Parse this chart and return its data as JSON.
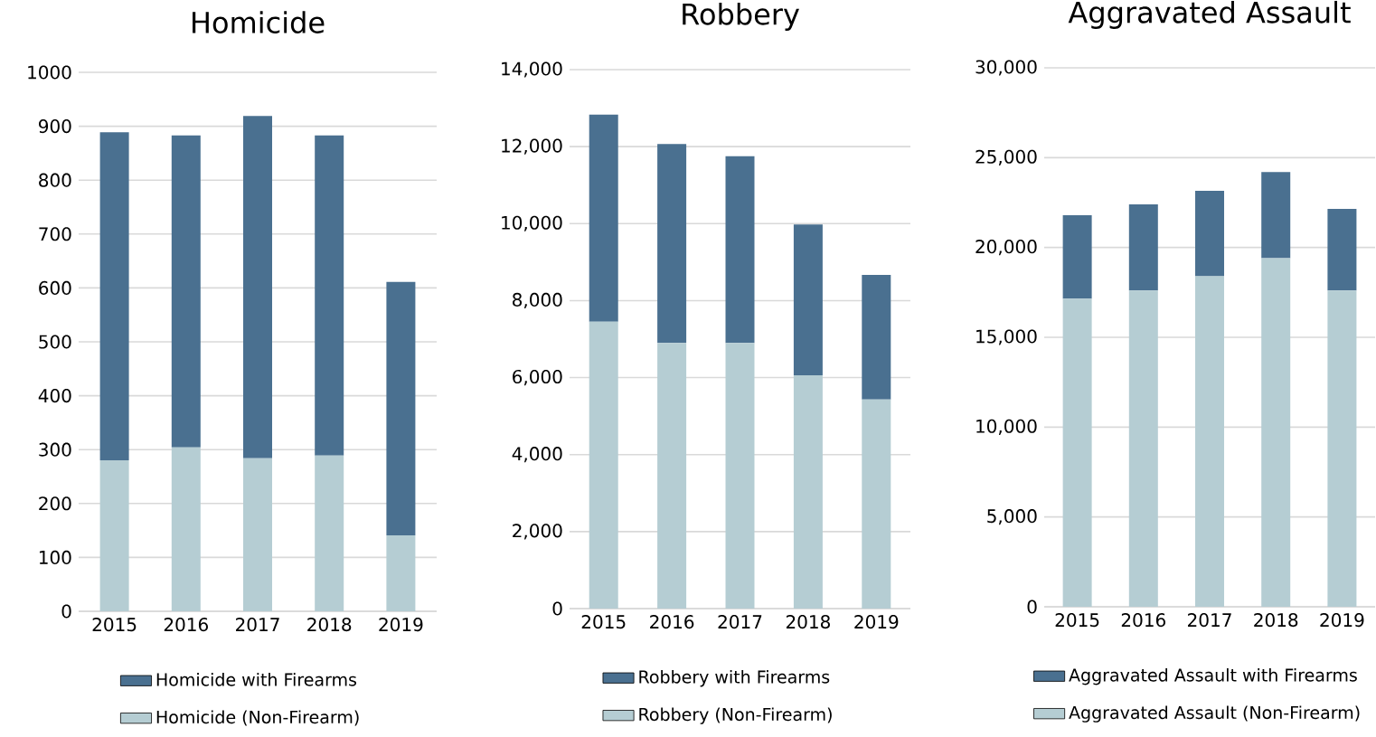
{
  "chart_data": [
    {
      "type": "bar",
      "title": "Homicide",
      "stacked": true,
      "categories": [
        "2015",
        "2016",
        "2017",
        "2018",
        "2019"
      ],
      "series": [
        {
          "name": "Homicide (Non-Firearm)",
          "color": "#b5cdd3",
          "values": [
            280,
            304,
            284,
            289,
            141
          ]
        },
        {
          "name": "Homicide with Firearms",
          "color": "#4a7090",
          "values": [
            609,
            579,
            635,
            594,
            470
          ]
        }
      ],
      "ylim": [
        0,
        1000
      ],
      "yticks": [
        0,
        100,
        200,
        300,
        400,
        500,
        600,
        700,
        800,
        900,
        1000
      ],
      "grid": "y",
      "legend": "bottom"
    },
    {
      "type": "bar",
      "title": "Robbery",
      "stacked": true,
      "categories": [
        "2015",
        "2016",
        "2017",
        "2018",
        "2019"
      ],
      "series": [
        {
          "name": "Robbery (Non-Firearm)",
          "color": "#b5cdd3",
          "values": [
            7450,
            6900,
            6900,
            6060,
            5430
          ]
        },
        {
          "name": "Robbery with Firearms",
          "color": "#4a7090",
          "values": [
            5380,
            5170,
            4850,
            3920,
            3240
          ]
        }
      ],
      "ylim": [
        0,
        14000
      ],
      "yticks": [
        0,
        {
          "value": 2000,
          "label": "2,000"
        },
        {
          "value": 4000,
          "label": "4,000"
        },
        {
          "value": 6000,
          "label": "6,000"
        },
        {
          "value": 8000,
          "label": "8,000"
        },
        {
          "value": 10000,
          "label": "10,000"
        },
        {
          "value": 12000,
          "label": "12,000"
        },
        {
          "value": 14000,
          "label": "14,000"
        }
      ],
      "grid": "y",
      "legend": "bottom"
    },
    {
      "type": "bar",
      "title": "Aggravated Assault",
      "stacked": true,
      "categories": [
        "2015",
        "2016",
        "2017",
        "2018",
        "2019"
      ],
      "series": [
        {
          "name": "Aggravated Assault (Non-Firearm)",
          "color": "#b5cdd3",
          "values": [
            17150,
            17600,
            18400,
            19400,
            17600
          ]
        },
        {
          "name": "Aggravated Assault with Firearms",
          "color": "#4a7090",
          "values": [
            4650,
            4800,
            4750,
            4800,
            4550
          ]
        }
      ],
      "ylim": [
        0,
        30000
      ],
      "yticks": [
        0,
        {
          "value": 5000,
          "label": "5,000"
        },
        {
          "value": 10000,
          "label": "10,000"
        },
        {
          "value": 15000,
          "label": "15,000"
        },
        {
          "value": 20000,
          "label": "20,000"
        },
        {
          "value": 25000,
          "label": "25,000"
        },
        {
          "value": 30000,
          "label": "30,000"
        }
      ],
      "grid": "y",
      "legend": "bottom"
    }
  ]
}
